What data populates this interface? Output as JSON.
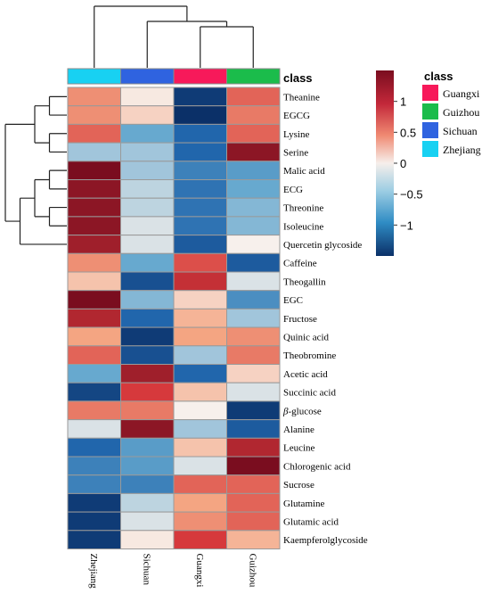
{
  "chart_data": {
    "type": "heatmap",
    "columns": [
      "Zhejiang",
      "Sichuan",
      "Guangxi",
      "Guizhou"
    ],
    "column_classes": [
      "Zhejiang",
      "Sichuan",
      "Guangxi",
      "Guizhou"
    ],
    "class_header": "class",
    "rows": [
      [
        "Theanine",
        "",
        ""
      ],
      [
        "EGCG",
        "",
        ""
      ],
      [
        "Lysine",
        "",
        ""
      ],
      [
        "Serine",
        "",
        ""
      ],
      [
        "Malic acid",
        "",
        ""
      ],
      [
        "ECG",
        "",
        ""
      ],
      [
        "Threonine",
        "",
        ""
      ],
      [
        "Isoleucine",
        "",
        ""
      ],
      [
        "Quercetin glycoside",
        "",
        ""
      ],
      [
        "Caffeine",
        "",
        ""
      ],
      [
        "Theogallin",
        "",
        ""
      ],
      [
        "EGC",
        "",
        ""
      ],
      [
        "Fructose",
        "",
        ""
      ],
      [
        "Quinic acid",
        "",
        ""
      ],
      [
        "Theobromine",
        "",
        ""
      ],
      [
        "Acetic acid",
        "",
        ""
      ],
      [
        "Succinic acid",
        "",
        ""
      ],
      [
        "",
        "β",
        "-glucose"
      ],
      [
        "Alanine",
        "",
        ""
      ],
      [
        "Leucine",
        "",
        ""
      ],
      [
        "Chlorogenic acid",
        "",
        ""
      ],
      [
        "Sucrose",
        "",
        ""
      ],
      [
        "Glutamine",
        "",
        ""
      ],
      [
        "Glutamic acid",
        "",
        ""
      ],
      [
        "Kaempferolglycoside",
        "",
        ""
      ]
    ],
    "values": [
      [
        0.6,
        0.05,
        -1.4,
        0.8
      ],
      [
        0.6,
        0.2,
        -1.5,
        0.7
      ],
      [
        0.8,
        -0.5,
        -1.0,
        0.8
      ],
      [
        -0.3,
        -0.3,
        -1.0,
        1.4
      ],
      [
        1.5,
        -0.3,
        -0.8,
        -0.6
      ],
      [
        1.4,
        -0.2,
        -0.9,
        -0.5
      ],
      [
        1.4,
        -0.2,
        -0.9,
        -0.4
      ],
      [
        1.4,
        -0.1,
        -0.9,
        -0.4
      ],
      [
        1.3,
        -0.1,
        -1.1,
        0.0
      ],
      [
        0.6,
        -0.5,
        0.9,
        -1.1
      ],
      [
        0.3,
        -1.2,
        1.1,
        -0.1
      ],
      [
        1.5,
        -0.4,
        0.2,
        -0.7
      ],
      [
        1.2,
        -1.0,
        0.4,
        -0.3
      ],
      [
        0.5,
        -1.4,
        0.5,
        0.6
      ],
      [
        0.8,
        -1.2,
        -0.3,
        0.7
      ],
      [
        -0.5,
        1.3,
        -1.0,
        0.2
      ],
      [
        -1.3,
        1.0,
        0.3,
        -0.1
      ],
      [
        0.7,
        0.7,
        0.0,
        -1.4
      ],
      [
        -0.1,
        1.4,
        -0.3,
        -1.1
      ],
      [
        -1.0,
        -0.6,
        0.3,
        1.2
      ],
      [
        -0.8,
        -0.6,
        -0.1,
        1.5
      ],
      [
        -0.8,
        -0.8,
        0.8,
        0.8
      ],
      [
        -1.4,
        -0.2,
        0.5,
        0.8
      ],
      [
        -1.4,
        -0.1,
        0.6,
        0.8
      ],
      [
        -1.4,
        0.05,
        1.0,
        0.4
      ]
    ],
    "colorbar": {
      "ticks": [
        1,
        0.5,
        0,
        -0.5,
        -1
      ],
      "tick_labels": [
        "1",
        "0.5",
        "0",
        "−0.5",
        "−1"
      ],
      "range": [
        -1.5,
        1.5
      ]
    },
    "legend": {
      "title": "class",
      "placement": "right",
      "entries": [
        {
          "label": "Guangxi",
          "color": "#f7195a"
        },
        {
          "label": "Guizhou",
          "color": "#1bbc4b"
        },
        {
          "label": "Sichuan",
          "color": "#2f63e0"
        },
        {
          "label": "Zhejiang",
          "color": "#18d1f2"
        }
      ]
    }
  }
}
